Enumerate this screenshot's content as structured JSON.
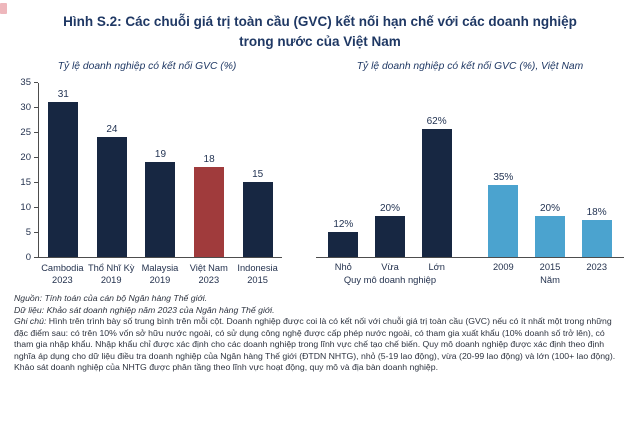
{
  "title": {
    "line1": "Hình S.2: Các chuỗi giá trị toàn cầu (GVC) kết nối hạn chế với các doanh nghiệp",
    "line2": "trong nước của Việt Nam"
  },
  "colors": {
    "navy_bar": "#172742",
    "red_bar": "#a03b3c",
    "blue_bar": "#4ba3cf",
    "title_navy": "#1f3864"
  },
  "chart_data": [
    {
      "type": "bar",
      "title": "Tỷ lệ doanh nghiệp có kết nối GVC (%)",
      "categories": [
        [
          "Cambodia",
          "2023"
        ],
        [
          "Thổ Nhĩ Kỳ",
          "2019"
        ],
        [
          "Malaysia",
          "2019"
        ],
        [
          "Việt Nam",
          "2023"
        ],
        [
          "Indonesia",
          "2015"
        ]
      ],
      "values": [
        31,
        24,
        19,
        18,
        15
      ],
      "labels": [
        "31",
        "24",
        "19",
        "18",
        "15"
      ],
      "bar_colors": [
        "#172742",
        "#172742",
        "#172742",
        "#a03b3c",
        "#172742"
      ],
      "xlabel": "",
      "ylabel": "",
      "ylim": [
        0,
        35
      ],
      "yticks": [
        0,
        5,
        10,
        15,
        20,
        25,
        30,
        35
      ],
      "grid": false,
      "legend": "none"
    },
    {
      "type": "bar",
      "title": "Tỷ lệ doanh nghiệp có kết nối GVC (%), Việt Nam",
      "categories": [
        "Nhỏ",
        "Vừa",
        "Lớn",
        "2009",
        "2015",
        "2023"
      ],
      "values": [
        12,
        20,
        62,
        35,
        20,
        18
      ],
      "labels": [
        "12%",
        "20%",
        "62%",
        "35%",
        "20%",
        "18%"
      ],
      "bar_colors": [
        "#172742",
        "#172742",
        "#172742",
        "#4ba3cf",
        "#4ba3cf",
        "#4ba3cf"
      ],
      "groups": [
        {
          "label": "Quy mô doanh nghiệp",
          "span": [
            0,
            2
          ]
        },
        {
          "label": "Năm",
          "span": [
            3,
            5
          ]
        }
      ],
      "xlabel": "",
      "ylabel": "",
      "ylim": [
        0,
        85
      ],
      "yaxis_visible": false,
      "grid": false,
      "legend": "none"
    }
  ],
  "notes": [
    {
      "label": "Nguồn:",
      "text": "Tính toán của cán bộ Ngân hàng Thế giới."
    },
    {
      "label": "Dữ liệu:",
      "text": "Khảo sát doanh nghiệp năm 2023 của Ngân hàng Thế giới."
    },
    {
      "label": "Ghi chú:",
      "text": "Hình trên trình bày số trung bình trên mỗi cột. Doanh nghiệp được coi là có kết nối với chuỗi giá trị toàn cầu (GVC) nếu có ít nhất một trong những đặc điểm sau: có trên 10% vốn sở hữu nước ngoài, có sử dụng công nghệ được cấp phép nước ngoài, có tham gia xuất khẩu (10% doanh số trở lên), có tham gia nhập khẩu. Nhập khẩu chỉ được xác định cho các doanh nghiệp trong lĩnh vực chế tạo chế biến. Quy mô doanh nghiệp được xác định theo định nghĩa áp dụng cho dữ liệu điều tra doanh nghiệp của Ngân hàng Thế giới (ĐTDN NHTG), nhỏ (5-19 lao động), vừa (20-99 lao động) và lớn (100+ lao động). Khảo sát doanh nghiệp của NHTG được phân tầng theo lĩnh vực hoạt động, quy mô và địa bàn doanh nghiệp."
    }
  ]
}
